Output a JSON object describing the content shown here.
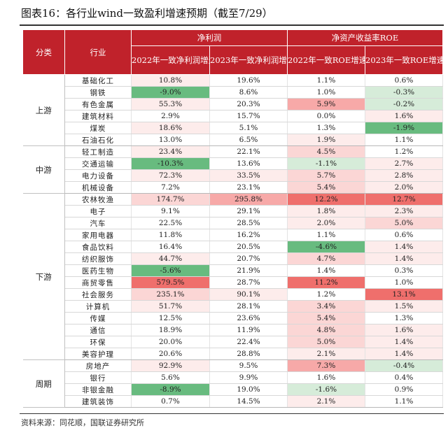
{
  "title": "图表16：各行业wind一致盈利增速预期（截至7/29）",
  "source": "资料来源：同花顺，国联证券研究所",
  "header": {
    "category": "分类",
    "industry": "行业",
    "group_profit": "净利润",
    "group_roe": "净资产收益率ROE",
    "col_profit_2022": "2022年一致净利润增速预期",
    "col_profit_2023": "2023年一致净利润增速预期",
    "col_roe_2022": "2022年一致ROE增速预期",
    "col_roe_2023": "2023年一致ROE增速预期"
  },
  "colors": {
    "header_red": "#c0222b",
    "deep_red": "#ef6f6c",
    "mid_red": "#f7a9a8",
    "light_red": "#fbd6d5",
    "pale_red": "#fdeceb",
    "green": "#68bb7f",
    "light_green": "#d6ecd9",
    "neutral": "#ffffff"
  },
  "groups": [
    {
      "category": "上游",
      "rows": [
        {
          "industry": "基础化工",
          "profit_2022": "10.8%",
          "profit_2023": "19.6%",
          "roe_2022": "1.1%",
          "roe_2023": "0.6%",
          "c1": "pale_red",
          "c2": "neutral",
          "c3": "neutral",
          "c4": "neutral"
        },
        {
          "industry": "钢铁",
          "profit_2022": "-9.0%",
          "profit_2023": "8.6%",
          "roe_2022": "1.0%",
          "roe_2023": "-0.3%",
          "c1": "green",
          "c2": "neutral",
          "c3": "neutral",
          "c4": "light_green"
        },
        {
          "industry": "有色金属",
          "profit_2022": "55.3%",
          "profit_2023": "20.3%",
          "roe_2022": "5.9%",
          "roe_2023": "-0.2%",
          "c1": "pale_red",
          "c2": "neutral",
          "c3": "mid_red",
          "c4": "light_green"
        },
        {
          "industry": "建筑材料",
          "profit_2022": "2.9%",
          "profit_2023": "15.7%",
          "roe_2022": "0.0%",
          "roe_2023": "1.6%",
          "c1": "neutral",
          "c2": "neutral",
          "c3": "neutral",
          "c4": "pale_red"
        },
        {
          "industry": "煤炭",
          "profit_2022": "18.6%",
          "profit_2023": "5.1%",
          "roe_2022": "1.3%",
          "roe_2023": "-1.9%",
          "c1": "pale_red",
          "c2": "neutral",
          "c3": "neutral",
          "c4": "green"
        },
        {
          "industry": "石油石化",
          "profit_2022": "13.0%",
          "profit_2023": "6.5%",
          "roe_2022": "1.9%",
          "roe_2023": "1.1%",
          "c1": "neutral",
          "c2": "neutral",
          "c3": "pale_red",
          "c4": "neutral"
        }
      ]
    },
    {
      "category": "中游",
      "rows": [
        {
          "industry": "轻工制造",
          "profit_2022": "23.4%",
          "profit_2023": "22.1%",
          "roe_2022": "4.5%",
          "roe_2023": "1.2%",
          "c1": "pale_red",
          "c2": "neutral",
          "c3": "light_red",
          "c4": "neutral"
        },
        {
          "industry": "交通运输",
          "profit_2022": "-10.3%",
          "profit_2023": "13.6%",
          "roe_2022": "-1.1%",
          "roe_2023": "2.7%",
          "c1": "green",
          "c2": "neutral",
          "c3": "light_green",
          "c4": "pale_red"
        },
        {
          "industry": "电力设备",
          "profit_2022": "72.3%",
          "profit_2023": "33.5%",
          "roe_2022": "5.7%",
          "roe_2023": "2.8%",
          "c1": "pale_red",
          "c2": "pale_red",
          "c3": "light_red",
          "c4": "pale_red"
        },
        {
          "industry": "机械设备",
          "profit_2022": "7.2%",
          "profit_2023": "23.1%",
          "roe_2022": "5.4%",
          "roe_2023": "2.0%",
          "c1": "neutral",
          "c2": "neutral",
          "c3": "light_red",
          "c4": "pale_red"
        }
      ]
    },
    {
      "category": "下游",
      "rows": [
        {
          "industry": "农林牧渔",
          "profit_2022": "174.7%",
          "profit_2023": "295.8%",
          "roe_2022": "12.2%",
          "roe_2023": "12.7%",
          "c1": "light_red",
          "c2": "mid_red",
          "c3": "deep_red",
          "c4": "deep_red"
        },
        {
          "industry": "电子",
          "profit_2022": "9.1%",
          "profit_2023": "29.1%",
          "roe_2022": "1.8%",
          "roe_2023": "2.3%",
          "c1": "neutral",
          "c2": "neutral",
          "c3": "pale_red",
          "c4": "pale_red"
        },
        {
          "industry": "汽车",
          "profit_2022": "22.5%",
          "profit_2023": "28.5%",
          "roe_2022": "2.0%",
          "roe_2023": "5.0%",
          "c1": "neutral",
          "c2": "neutral",
          "c3": "pale_red",
          "c4": "light_red"
        },
        {
          "industry": "家用电器",
          "profit_2022": "11.8%",
          "profit_2023": "16.2%",
          "roe_2022": "1.1%",
          "roe_2023": "0.6%",
          "c1": "neutral",
          "c2": "neutral",
          "c3": "neutral",
          "c4": "neutral"
        },
        {
          "industry": "食品饮料",
          "profit_2022": "16.4%",
          "profit_2023": "20.5%",
          "roe_2022": "-4.6%",
          "roe_2023": "1.4%",
          "c1": "neutral",
          "c2": "neutral",
          "c3": "green",
          "c4": "pale_red"
        },
        {
          "industry": "纺织服饰",
          "profit_2022": "44.7%",
          "profit_2023": "20.7%",
          "roe_2022": "4.7%",
          "roe_2023": "1.4%",
          "c1": "pale_red",
          "c2": "neutral",
          "c3": "light_red",
          "c4": "pale_red"
        },
        {
          "industry": "医药生物",
          "profit_2022": "-5.6%",
          "profit_2023": "21.9%",
          "roe_2022": "1.4%",
          "roe_2023": "0.3%",
          "c1": "green",
          "c2": "neutral",
          "c3": "neutral",
          "c4": "neutral"
        },
        {
          "industry": "商贸零售",
          "profit_2022": "579.5%",
          "profit_2023": "28.7%",
          "roe_2022": "11.2%",
          "roe_2023": "1.0%",
          "c1": "deep_red",
          "c2": "neutral",
          "c3": "deep_red",
          "c4": "neutral"
        },
        {
          "industry": "社会服务",
          "profit_2022": "235.1%",
          "profit_2023": "90.1%",
          "roe_2022": "1.2%",
          "roe_2023": "13.1%",
          "c1": "light_red",
          "c2": "pale_red",
          "c3": "neutral",
          "c4": "deep_red"
        },
        {
          "industry": "计算机",
          "profit_2022": "51.7%",
          "profit_2023": "28.1%",
          "roe_2022": "3.4%",
          "roe_2023": "1.5%",
          "c1": "pale_red",
          "c2": "neutral",
          "c3": "light_red",
          "c4": "pale_red"
        },
        {
          "industry": "传媒",
          "profit_2022": "12.5%",
          "profit_2023": "23.6%",
          "roe_2022": "5.4%",
          "roe_2023": "1.3%",
          "c1": "neutral",
          "c2": "neutral",
          "c3": "light_red",
          "c4": "neutral"
        },
        {
          "industry": "通信",
          "profit_2022": "18.9%",
          "profit_2023": "11.9%",
          "roe_2022": "4.8%",
          "roe_2023": "1.6%",
          "c1": "neutral",
          "c2": "neutral",
          "c3": "light_red",
          "c4": "pale_red"
        },
        {
          "industry": "环保",
          "profit_2022": "20.0%",
          "profit_2023": "22.4%",
          "roe_2022": "5.0%",
          "roe_2023": "1.4%",
          "c1": "neutral",
          "c2": "neutral",
          "c3": "light_red",
          "c4": "pale_red"
        },
        {
          "industry": "美容护理",
          "profit_2022": "20.6%",
          "profit_2023": "28.8%",
          "roe_2022": "2.1%",
          "roe_2023": "1.4%",
          "c1": "neutral",
          "c2": "neutral",
          "c3": "pale_red",
          "c4": "pale_red"
        }
      ]
    },
    {
      "category": "周期",
      "rows": [
        {
          "industry": "房地产",
          "profit_2022": "92.9%",
          "profit_2023": "9.5%",
          "roe_2022": "7.3%",
          "roe_2023": "-0.4%",
          "c1": "pale_red",
          "c2": "neutral",
          "c3": "mid_red",
          "c4": "light_green"
        },
        {
          "industry": "银行",
          "profit_2022": "5.6%",
          "profit_2023": "9.9%",
          "roe_2022": "1.6%",
          "roe_2023": "0.4%",
          "c1": "neutral",
          "c2": "neutral",
          "c3": "neutral",
          "c4": "neutral"
        },
        {
          "industry": "非银金融",
          "profit_2022": "-8.9%",
          "profit_2023": "19.0%",
          "roe_2022": "-1.6%",
          "roe_2023": "0.9%",
          "c1": "green",
          "c2": "neutral",
          "c3": "light_green",
          "c4": "neutral"
        },
        {
          "industry": "建筑装饰",
          "profit_2022": "0.7%",
          "profit_2023": "14.5%",
          "roe_2022": "2.1%",
          "roe_2023": "1.1%",
          "c1": "neutral",
          "c2": "neutral",
          "c3": "pale_red",
          "c4": "neutral"
        }
      ]
    }
  ]
}
